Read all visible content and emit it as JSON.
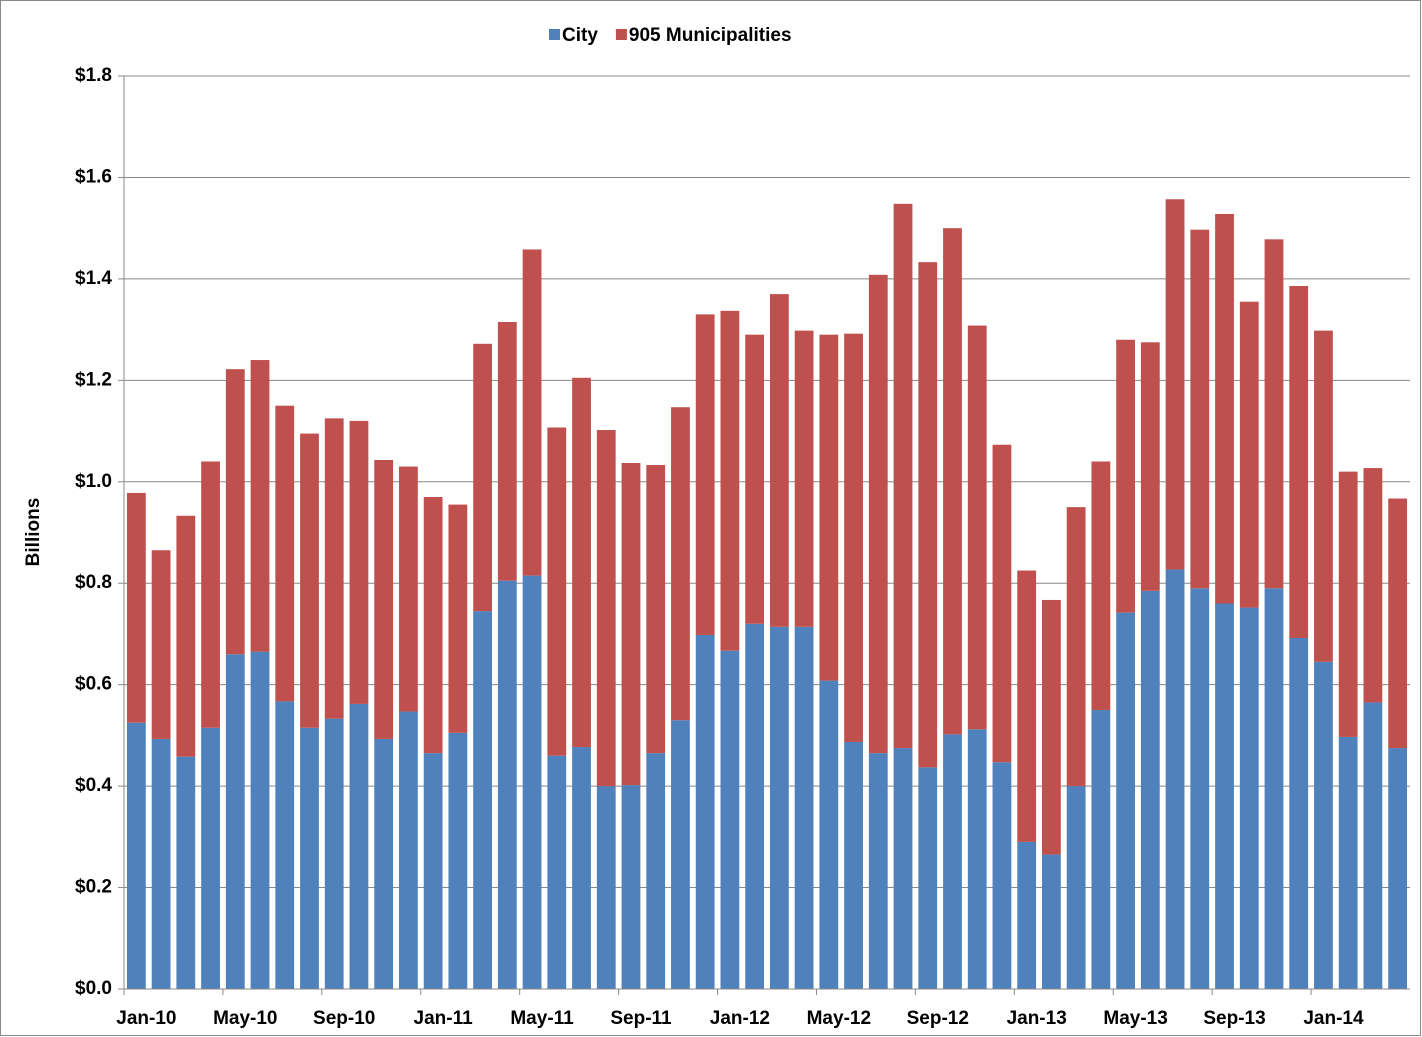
{
  "chart_data": {
    "type": "stacked_bar",
    "y_label": "Billions",
    "categories": [
      "Jan-10",
      null,
      null,
      null,
      "May-10",
      null,
      null,
      null,
      "Sep-10",
      null,
      null,
      null,
      "Jan-11",
      null,
      null,
      null,
      "May-11",
      null,
      null,
      null,
      "Sep-11",
      null,
      null,
      null,
      "Jan-12",
      null,
      null,
      null,
      "May-12",
      null,
      null,
      null,
      "Sep-12",
      null,
      null,
      null,
      "Jan-13",
      null,
      null,
      null,
      "May-13",
      null,
      null,
      null,
      "Sep-13",
      null,
      null,
      null,
      "Jan-14",
      null,
      null,
      null
    ],
    "series": [
      {
        "name": "City",
        "color": "#4f81bd",
        "values": [
          0.525,
          0.493,
          0.458,
          0.515,
          0.66,
          0.665,
          0.567,
          0.515,
          0.533,
          0.562,
          0.493,
          0.547,
          0.465,
          0.505,
          0.745,
          0.805,
          0.815,
          0.46,
          0.477,
          0.4,
          0.402,
          0.465,
          0.53,
          0.698,
          0.667,
          0.72,
          0.714,
          0.714,
          0.608,
          0.487,
          0.465,
          0.475,
          0.437,
          0.502,
          0.512,
          0.447,
          0.29,
          0.265,
          0.4,
          0.55,
          0.742,
          0.785,
          0.827,
          0.79,
          0.76,
          0.752,
          0.79,
          0.692,
          0.645,
          0.497,
          0.565,
          0.475
        ]
      },
      {
        "name": "905 Municipalities",
        "color": "#c0504d",
        "values": [
          0.453,
          0.372,
          0.475,
          0.525,
          0.562,
          0.575,
          0.583,
          0.58,
          0.592,
          0.558,
          0.55,
          0.483,
          0.505,
          0.45,
          0.527,
          0.51,
          0.643,
          0.647,
          0.728,
          0.702,
          0.635,
          0.568,
          0.617,
          0.632,
          0.67,
          0.57,
          0.656,
          0.584,
          0.682,
          0.805,
          0.943,
          1.073,
          0.996,
          0.998,
          0.796,
          0.626,
          0.535,
          0.502,
          0.55,
          0.49,
          0.538,
          0.49,
          0.73,
          0.707,
          0.768,
          0.603,
          0.688,
          0.694,
          0.653,
          0.523,
          0.462,
          0.492
        ]
      }
    ],
    "ylim": [
      0,
      1.8
    ],
    "yticks": [
      {
        "value": 0,
        "label": "$0.0"
      },
      {
        "value": 0.2,
        "label": "$0.2"
      },
      {
        "value": 0.4,
        "label": "$0.4"
      },
      {
        "value": 0.6,
        "label": "$0.6"
      },
      {
        "value": 0.8,
        "label": "$0.8"
      },
      {
        "value": 1.0,
        "label": "$1.0"
      },
      {
        "value": 1.2,
        "label": "$1.2"
      },
      {
        "value": 1.4,
        "label": "$1.4"
      },
      {
        "value": 1.6,
        "label": "$1.6"
      },
      {
        "value": 1.8,
        "label": "$1.8"
      }
    ],
    "grid": true,
    "legend": "top"
  }
}
